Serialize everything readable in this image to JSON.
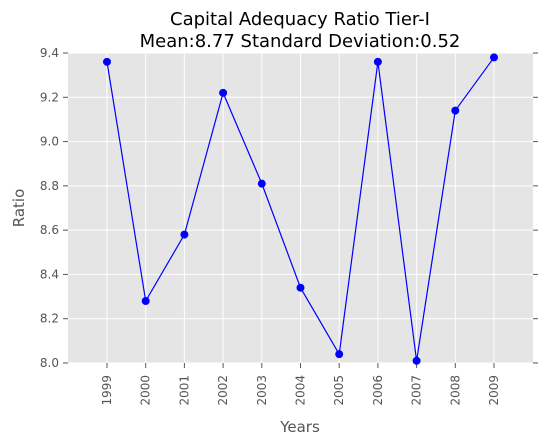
{
  "chart_data": {
    "type": "line",
    "title": "Capital Adequacy Ratio Tier-I",
    "subtitle": "Mean:8.77 Standard Deviation:0.52",
    "xlabel": "Years",
    "ylabel": "Ratio",
    "categories": [
      "1999",
      "2000",
      "2001",
      "2002",
      "2003",
      "2004",
      "2005",
      "2006",
      "2007",
      "2008",
      "2009"
    ],
    "values": [
      9.36,
      8.28,
      8.58,
      9.22,
      8.81,
      8.34,
      8.04,
      9.36,
      8.01,
      9.14,
      9.38
    ],
    "ylim": [
      8.0,
      9.4
    ],
    "yticks": [
      "8.0",
      "8.2",
      "8.4",
      "8.6",
      "8.8",
      "9.0",
      "9.2",
      "9.4"
    ],
    "grid": true,
    "colors": {
      "line": "#0000ff",
      "marker": "#0000ff",
      "plot_background": "#e5e5e5",
      "grid": "#ffffff"
    }
  }
}
